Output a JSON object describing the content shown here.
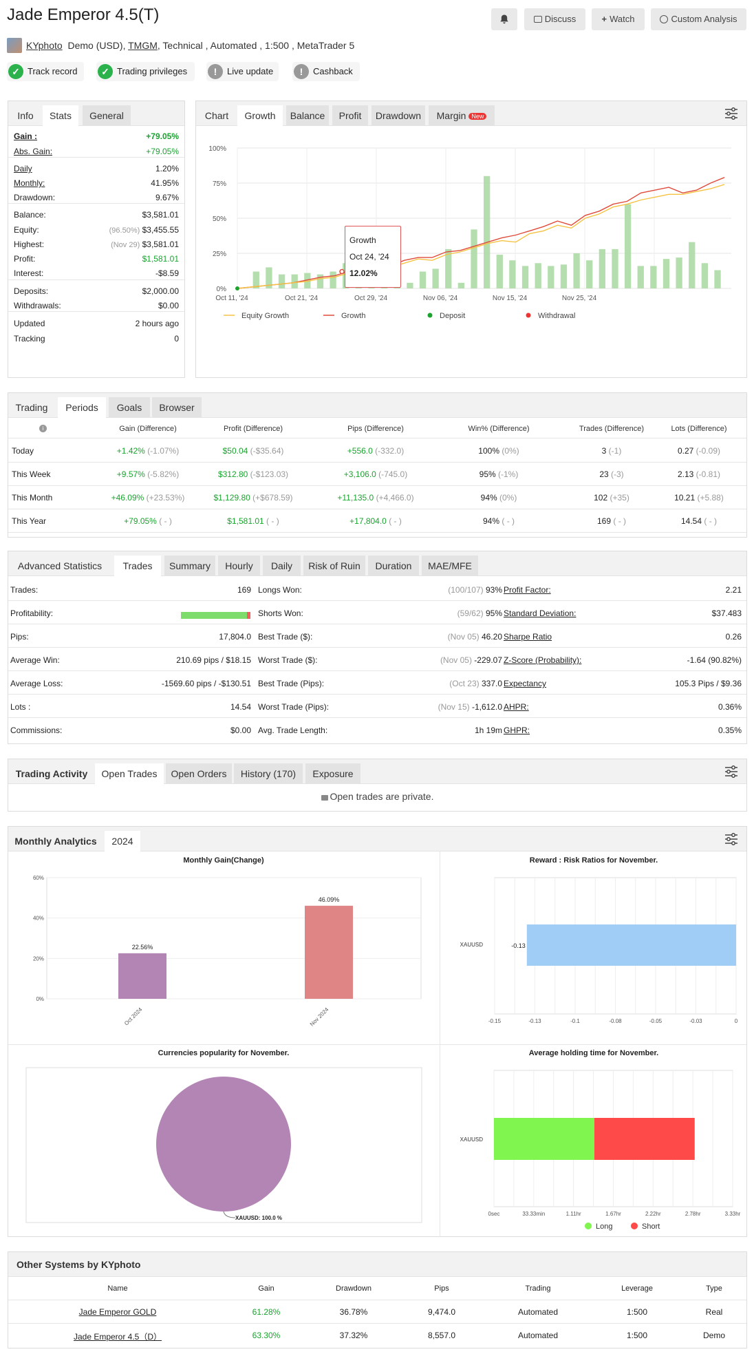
{
  "header": {
    "title": "Jade Emperor 4.5(T)",
    "user": "KYphoto",
    "account_type": "Demo (USD),",
    "broker": "TMGM",
    "details": ", Technical , Automated , 1:500 , MetaTrader 5",
    "discuss": "Discuss",
    "watch": "Watch",
    "custom": "Custom Analysis"
  },
  "badges": [
    {
      "label": "Track record",
      "status": "ok"
    },
    {
      "label": "Trading privileges",
      "status": "ok"
    },
    {
      "label": "Live update",
      "status": "warn"
    },
    {
      "label": "Cashback",
      "status": "warn"
    }
  ],
  "info": {
    "tabs": [
      "Info",
      "Stats",
      "General"
    ],
    "rows": [
      {
        "label": "Gain :",
        "value": "+79.05%",
        "cls": "green",
        "bold": true
      },
      {
        "label": "Abs. Gain:",
        "value": "+79.05%",
        "cls": "green"
      },
      {
        "label": "Daily",
        "value": "1.20%"
      },
      {
        "label": "Monthly:",
        "value": "41.95%"
      },
      {
        "label": "Drawdown:",
        "value": "9.67%"
      },
      {
        "label": "Balance:",
        "value": "$3,581.01"
      },
      {
        "label": "Equity:",
        "pre": "(96.50%)",
        "value": "$3,455.55"
      },
      {
        "label": "Highest:",
        "pre": "(Nov 29)",
        "value": "$3,581.01"
      },
      {
        "label": "Profit:",
        "value": "$1,581.01",
        "cls": "green"
      },
      {
        "label": "Interest:",
        "value": "-$8.59"
      },
      {
        "label": "Deposits:",
        "value": "$2,000.00"
      },
      {
        "label": "Withdrawals:",
        "value": "$0.00"
      },
      {
        "label": "Updated",
        "value": "2 hours ago"
      },
      {
        "label": "Tracking",
        "value": "0"
      }
    ]
  },
  "chart_panel": {
    "tabs": [
      "Chart",
      "Growth",
      "Balance",
      "Profit",
      "Drawdown",
      "Margin"
    ],
    "new_badge": "New",
    "tooltip": {
      "title": "Growth",
      "date": "Oct 24, '24",
      "value": "12.02%"
    },
    "legend": [
      "Equity Growth",
      "Growth",
      "Deposit",
      "Withdrawal"
    ]
  },
  "chart_data": [
    {
      "type": "bar+line",
      "title": "",
      "y_ticks": [
        "100%",
        "75%",
        "50%",
        "25%",
        "0%"
      ],
      "x_ticks": [
        "Oct 11, '24",
        "Oct 21, '24",
        "Oct 29, '24",
        "Nov 06, '24",
        "Nov 15, '24",
        "Nov 25, '24"
      ],
      "ylim": [
        0,
        100
      ],
      "series": [
        {
          "name": "Growth",
          "values": [
            0,
            1,
            2,
            3,
            4,
            6,
            8,
            9,
            12,
            11,
            14,
            16,
            20,
            22,
            22,
            26,
            27,
            30,
            33,
            36,
            38,
            41,
            44,
            48,
            45,
            52,
            55,
            60,
            62,
            68,
            70,
            72,
            68,
            70,
            75,
            79
          ]
        },
        {
          "name": "Equity Growth",
          "values": [
            0,
            1,
            2,
            3,
            4,
            5,
            7,
            8,
            11,
            10,
            13,
            15,
            18,
            21,
            20,
            24,
            26,
            29,
            32,
            34,
            33,
            39,
            41,
            45,
            43,
            50,
            53,
            58,
            60,
            63,
            65,
            67,
            67,
            69,
            71,
            74
          ]
        }
      ],
      "bars": [
        0,
        12,
        15,
        10,
        10,
        11,
        10,
        12,
        18,
        20,
        21,
        18,
        19,
        4,
        12,
        14,
        28,
        4,
        42,
        80,
        24,
        20,
        16,
        18,
        16,
        17,
        25,
        20,
        28,
        28,
        60,
        16,
        16,
        21,
        22,
        33,
        18,
        13
      ]
    },
    {
      "type": "bar",
      "title": "Monthly Gain(Change)",
      "categories": [
        "Oct 2024",
        "Nov 2024"
      ],
      "values": [
        22.56,
        46.09
      ],
      "labels": [
        "22.56%",
        "46.09%"
      ],
      "y_ticks": [
        "60%",
        "40%",
        "20%",
        "0%"
      ],
      "ylim": [
        0,
        60
      ]
    },
    {
      "type": "bar",
      "title": "Reward : Risk Ratios for November.",
      "categories": [
        "XAUUSD"
      ],
      "values": [
        -0.13
      ],
      "labels": [
        "-0.13"
      ],
      "x_ticks": [
        "-0.15",
        "-0.13",
        "-0.1",
        "-0.08",
        "-0.05",
        "-0.03",
        "0"
      ],
      "xlim": [
        -0.15,
        0
      ]
    },
    {
      "type": "pie",
      "title": "Currencies popularity for November.",
      "categories": [
        "XAUUSD"
      ],
      "values": [
        100
      ],
      "label": "XAUUSD: 100.0 %"
    },
    {
      "type": "bar",
      "title": "Average holding time for November.",
      "categories": [
        "XAUUSD"
      ],
      "series": [
        {
          "name": "Long",
          "values": [
            1.4
          ]
        },
        {
          "name": "Short",
          "values": [
            1.4
          ]
        }
      ],
      "x_ticks": [
        "0sec",
        "33.33min",
        "1.11hr",
        "1.67hr",
        "2.22hr",
        "2.78hr",
        "3.33hr"
      ],
      "legend": [
        "Long",
        "Short"
      ]
    }
  ],
  "trading": {
    "tabs": [
      "Trading",
      "Periods",
      "Goals",
      "Browser"
    ],
    "headers": [
      "Gain (Difference)",
      "Profit (Difference)",
      "Pips (Difference)",
      "Win% (Difference)",
      "Trades (Difference)",
      "Lots (Difference)"
    ],
    "rows": [
      {
        "name": "Today",
        "gain": "+1.42%",
        "gd": "(-1.07%)",
        "profit": "$50.04",
        "pd": "(-$35.64)",
        "pips": "+556.0",
        "pid": "(-332.0)",
        "win": "100%",
        "wd": "(0%)",
        "trades": "3",
        "td": "(-1)",
        "lots": "0.27",
        "ld": "(-0.09)"
      },
      {
        "name": "This Week",
        "gain": "+9.57%",
        "gd": "(-5.82%)",
        "profit": "$312.80",
        "pd": "(-$123.03)",
        "pips": "+3,106.0",
        "pid": "(-745.0)",
        "win": "95%",
        "wd": "(-1%)",
        "trades": "23",
        "td": "(-3)",
        "lots": "2.13",
        "ld": "(-0.81)"
      },
      {
        "name": "This Month",
        "gain": "+46.09%",
        "gd": "(+23.53%)",
        "profit": "$1,129.80",
        "pd": "(+$678.59)",
        "pips": "+11,135.0",
        "pid": "(+4,466.0)",
        "win": "94%",
        "wd": "(0%)",
        "trades": "102",
        "td": "(+35)",
        "lots": "10.21",
        "ld": "(+5.88)"
      },
      {
        "name": "This Year",
        "gain": "+79.05%",
        "gd": "( - )",
        "profit": "$1,581.01",
        "pd": "( - )",
        "pips": "+17,804.0",
        "pid": "( - )",
        "win": "94%",
        "wd": "( - )",
        "trades": "169",
        "td": "( - )",
        "lots": "14.54",
        "ld": "( - )"
      }
    ]
  },
  "advanced": {
    "tabs": [
      "Advanced Statistics",
      "Trades",
      "Summary",
      "Hourly",
      "Daily",
      "Risk of Ruin",
      "Duration",
      "MAE/MFE"
    ],
    "col1": [
      [
        "Trades:",
        "169"
      ],
      [
        "Profitability:",
        ""
      ],
      [
        "Pips:",
        "17,804.0"
      ],
      [
        "Average Win:",
        "210.69 pips / $18.15"
      ],
      [
        "Average Loss:",
        "-1569.60 pips / -$130.51"
      ],
      [
        "Lots :",
        "14.54"
      ],
      [
        "Commissions:",
        "$0.00"
      ]
    ],
    "profitability_win": 0.95,
    "col2": [
      [
        "Longs Won:",
        "(100/107)",
        "93%"
      ],
      [
        "Shorts Won:",
        "(59/62)",
        "95%"
      ],
      [
        "Best Trade ($):",
        "(Nov 05)",
        "46.20"
      ],
      [
        "Worst Trade ($):",
        "(Nov 05)",
        "-229.07"
      ],
      [
        "Best Trade (Pips):",
        "(Oct 23)",
        "337.0"
      ],
      [
        "Worst Trade (Pips):",
        "(Nov 15)",
        "-1,612.0"
      ],
      [
        "Avg. Trade Length:",
        "",
        "1h 19m"
      ]
    ],
    "col3": [
      [
        "Profit Factor:",
        "2.21"
      ],
      [
        "Standard Deviation:",
        "$37.483"
      ],
      [
        "Sharpe Ratio",
        "0.26"
      ],
      [
        "Z-Score (Probability):",
        "-1.64 (90.82%)"
      ],
      [
        "Expectancy",
        "105.3 Pips / $9.36"
      ],
      [
        "AHPR:",
        "0.36%"
      ],
      [
        "GHPR:",
        "0.35%"
      ]
    ]
  },
  "activity": {
    "tabs": [
      "Trading Activity",
      "Open Trades",
      "Open Orders",
      "History (170)",
      "Exposure"
    ],
    "message": "Open trades are private."
  },
  "monthly": {
    "tabs": [
      "Monthly Analytics",
      "2024"
    ]
  },
  "other": {
    "title": "Other Systems by KYphoto",
    "headers": [
      "Name",
      "Gain",
      "Drawdown",
      "Pips",
      "Trading",
      "Leverage",
      "Type"
    ],
    "rows": [
      [
        "Jade Emperor GOLD",
        "61.28%",
        "36.78%",
        "9,474.0",
        "Automated",
        "1:500",
        "Real"
      ],
      [
        "Jade Emperor 4.5（D）",
        "63.30%",
        "37.32%",
        "8,557.0",
        "Automated",
        "1:500",
        "Demo"
      ]
    ]
  }
}
